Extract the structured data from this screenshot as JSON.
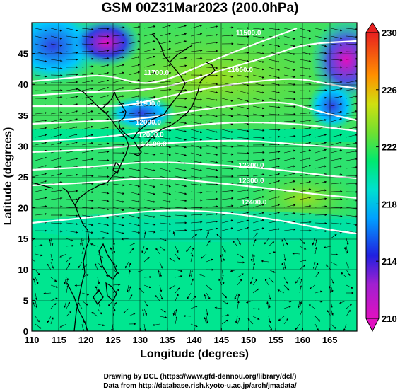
{
  "title": "GSM 00Z31Mar2023 (200.0hPa)",
  "map": {
    "xlabel": "Longitude (degrees)",
    "ylabel": "Latitude (degrees)",
    "x_ticks": [
      "110",
      "115",
      "120",
      "125",
      "130",
      "135",
      "140",
      "145",
      "150",
      "155",
      "160",
      "165"
    ],
    "y_ticks": [
      "0",
      "5",
      "10",
      "15",
      "20",
      "25",
      "30",
      "35",
      "40",
      "45"
    ],
    "lon_range": [
      110,
      170
    ],
    "lat_range": [
      0,
      50
    ],
    "contour_labels": [
      {
        "text": "11700.0",
        "lon": 133,
        "lat": 41.5
      },
      {
        "text": "11900.0",
        "lon": 131.5,
        "lat": 36.5
      },
      {
        "text": "12000.0",
        "lon": 131.5,
        "lat": 33.5
      },
      {
        "text": "12000.0",
        "lon": 132,
        "lat": 31.5
      },
      {
        "text": "12100.0",
        "lon": 132.5,
        "lat": 30
      },
      {
        "text": "11600.0",
        "lon": 148.5,
        "lat": 42
      },
      {
        "text": "11500.0",
        "lon": 150,
        "lat": 48
      },
      {
        "text": "12200.0",
        "lon": 150.5,
        "lat": 26.5
      },
      {
        "text": "12300.0",
        "lon": 150.5,
        "lat": 24
      },
      {
        "text": "12400.0",
        "lon": 151,
        "lat": 20.5
      }
    ]
  },
  "colorbar": {
    "labels": [
      "230",
      "226",
      "222",
      "218",
      "214",
      "210"
    ],
    "min": 210,
    "max": 230,
    "colors": [
      "#e010c0",
      "#2020e0",
      "#00c8ff",
      "#00e890",
      "#80e030",
      "#e0e010",
      "#ff8000",
      "#e82020"
    ]
  },
  "credits": {
    "line1": "Drawing by DCL (https://www.gfd-dennou.org/library/dcl/)",
    "line2": "Data from http://database.rish.kyoto-u.ac.jp/arch/jmadata/"
  }
}
